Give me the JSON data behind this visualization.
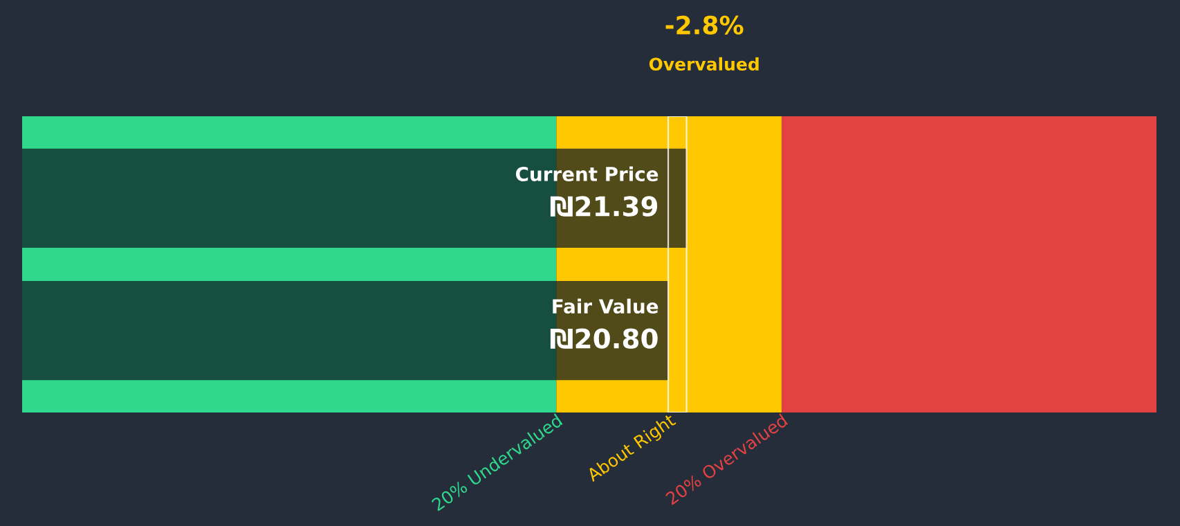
{
  "chart_data": {
    "type": "bar",
    "orientation": "horizontal",
    "categories": [
      "Current Price",
      "Fair Value"
    ],
    "values": [
      21.39,
      20.8
    ],
    "value_labels": [
      "₪21.39",
      "₪20.80"
    ],
    "color": "#0d1a22",
    "xlim": [
      0,
      36.52
    ],
    "bands": [
      {
        "axis": "x",
        "from": 0,
        "to": 17.2,
        "label": "20% Undervalued",
        "color": "#2fd88c"
      },
      {
        "axis": "x",
        "from": 17.2,
        "to": 24.45,
        "label": "About Right",
        "color": "#ffc800"
      },
      {
        "axis": "x",
        "from": 24.45,
        "to": 36.52,
        "label": "20% Overvalued",
        "color": "#e34242"
      }
    ],
    "annotations": [
      "-2.8%",
      "Overvalued"
    ]
  }
}
